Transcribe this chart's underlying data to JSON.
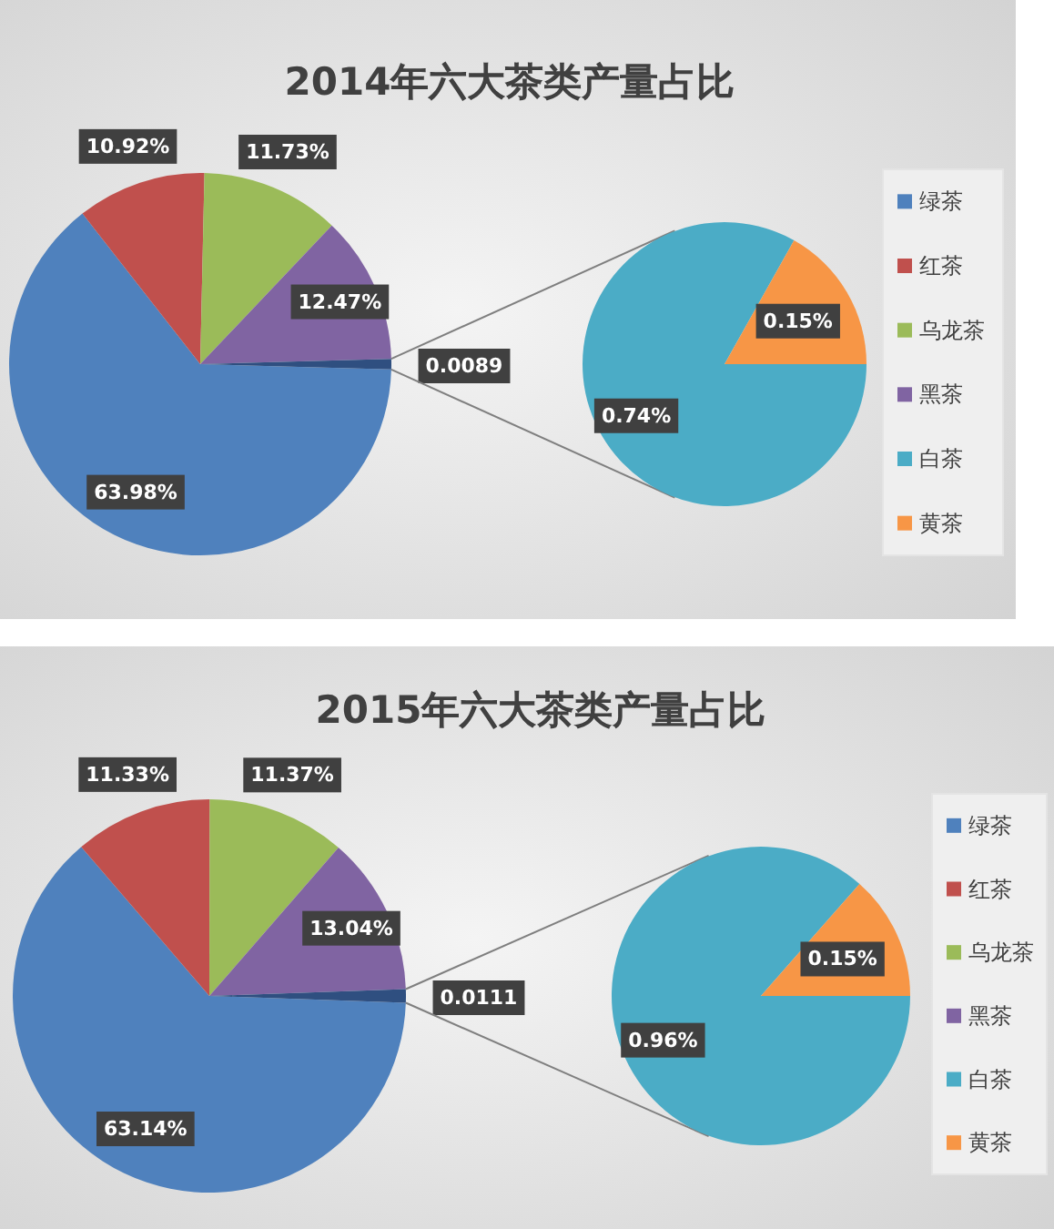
{
  "chart_data": [
    {
      "type": "pie",
      "title": "2014年六大茶类产量占比",
      "categories": [
        "绿茶",
        "红茶",
        "乌龙茶",
        "黑茶",
        null
      ],
      "values": [
        63.98,
        10.92,
        11.73,
        12.47,
        0.89
      ],
      "colors": [
        "#4f81bd",
        "#c0504d",
        "#9bbb59",
        "#8064a2",
        "#2f4f80"
      ],
      "value_labels": [
        "63.98%",
        "10.92%",
        "11.73%",
        "12.47%",
        null
      ],
      "annotations": [
        "0.0089"
      ],
      "legend": "right"
    },
    {
      "type": "pie",
      "categories": [
        "白茶",
        "黄茶"
      ],
      "values": [
        0.74,
        0.15
      ],
      "colors": [
        "#4bacc6",
        "#f79646"
      ],
      "value_labels": [
        "0.74%",
        "0.15%"
      ],
      "legend": "right"
    },
    {
      "type": "pie",
      "title": "2015年六大茶类产量占比",
      "categories": [
        "绿茶",
        "红茶",
        "乌龙茶",
        "黑茶",
        null
      ],
      "values": [
        63.14,
        11.33,
        11.37,
        13.04,
        1.11
      ],
      "colors": [
        "#4f81bd",
        "#c0504d",
        "#9bbb59",
        "#8064a2",
        "#2f4f80"
      ],
      "value_labels": [
        "63.14%",
        "11.33%",
        "11.37%",
        "13.04%",
        null
      ],
      "annotations": [
        "0.0111"
      ],
      "legend": "right"
    },
    {
      "type": "pie",
      "categories": [
        "白茶",
        "黄茶"
      ],
      "values": [
        0.96,
        0.15
      ],
      "colors": [
        "#4bacc6",
        "#f79646"
      ],
      "value_labels": [
        "0.96%",
        "0.15%"
      ],
      "legend": "right"
    }
  ]
}
